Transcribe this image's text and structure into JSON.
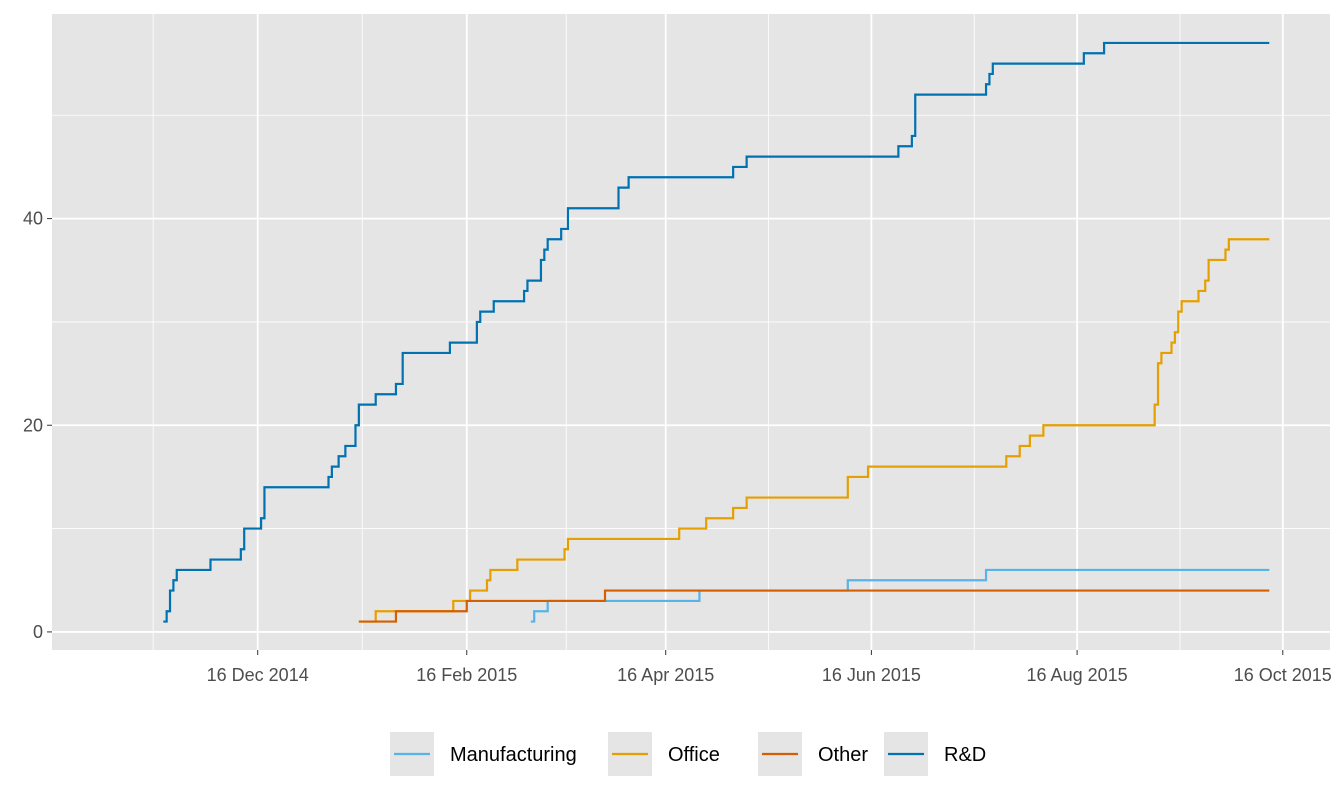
{
  "chart_data": {
    "type": "line",
    "step": true,
    "title": "",
    "xlabel": "",
    "ylabel": "",
    "xlim": [
      "2014-10-16",
      "2015-10-30"
    ],
    "ylim": [
      -1.75,
      59.8
    ],
    "x_ticks": [
      {
        "date": "2014-12-16",
        "label": "16 Dec 2014"
      },
      {
        "date": "2015-02-16",
        "label": "16 Feb 2015"
      },
      {
        "date": "2015-04-16",
        "label": "16 Apr 2015"
      },
      {
        "date": "2015-06-16",
        "label": "16 Jun 2015"
      },
      {
        "date": "2015-08-16",
        "label": "16 Aug 2015"
      },
      {
        "date": "2015-10-16",
        "label": "16 Oct 2015"
      }
    ],
    "y_ticks": [
      {
        "value": 0,
        "label": "0"
      },
      {
        "value": 20,
        "label": "20"
      },
      {
        "value": 40,
        "label": "40"
      }
    ],
    "grid": true,
    "background": "#E5E5E5",
    "legend_position": "bottom",
    "series": [
      {
        "name": "Manufacturing",
        "color": "#56B4E9",
        "points": [
          [
            "2015-03-07",
            1
          ],
          [
            "2015-03-08",
            2
          ],
          [
            "2015-03-12",
            3
          ],
          [
            "2015-04-26",
            4
          ],
          [
            "2015-06-09",
            5
          ],
          [
            "2015-07-20",
            6
          ],
          [
            "2015-10-12",
            6
          ]
        ]
      },
      {
        "name": "Office",
        "color": "#E69F00",
        "points": [
          [
            "2015-01-15",
            1
          ],
          [
            "2015-01-20",
            2
          ],
          [
            "2015-02-12",
            3
          ],
          [
            "2015-02-17",
            4
          ],
          [
            "2015-02-22",
            5
          ],
          [
            "2015-02-23",
            6
          ],
          [
            "2015-03-03",
            7
          ],
          [
            "2015-03-17",
            8
          ],
          [
            "2015-03-18",
            9
          ],
          [
            "2015-04-20",
            10
          ],
          [
            "2015-04-28",
            11
          ],
          [
            "2015-05-06",
            12
          ],
          [
            "2015-05-10",
            13
          ],
          [
            "2015-06-09",
            15
          ],
          [
            "2015-06-15",
            16
          ],
          [
            "2015-07-26",
            17
          ],
          [
            "2015-07-30",
            18
          ],
          [
            "2015-08-02",
            19
          ],
          [
            "2015-08-06",
            20
          ],
          [
            "2015-09-08",
            22
          ],
          [
            "2015-09-09",
            26
          ],
          [
            "2015-09-10",
            27
          ],
          [
            "2015-09-13",
            28
          ],
          [
            "2015-09-14",
            29
          ],
          [
            "2015-09-15",
            31
          ],
          [
            "2015-09-16",
            32
          ],
          [
            "2015-09-21",
            33
          ],
          [
            "2015-09-23",
            34
          ],
          [
            "2015-09-24",
            36
          ],
          [
            "2015-09-29",
            37
          ],
          [
            "2015-09-30",
            38
          ],
          [
            "2015-10-12",
            38
          ]
        ]
      },
      {
        "name": "Other",
        "color": "#D55E00",
        "points": [
          [
            "2015-01-15",
            1
          ],
          [
            "2015-01-26",
            2
          ],
          [
            "2015-02-16",
            3
          ],
          [
            "2015-03-29",
            4
          ],
          [
            "2015-10-12",
            4
          ]
        ]
      },
      {
        "name": "R&D",
        "color": "#0072B2",
        "points": [
          [
            "2014-11-18",
            1
          ],
          [
            "2014-11-19",
            2
          ],
          [
            "2014-11-20",
            4
          ],
          [
            "2014-11-21",
            5
          ],
          [
            "2014-11-22",
            6
          ],
          [
            "2014-12-02",
            7
          ],
          [
            "2014-12-11",
            8
          ],
          [
            "2014-12-12",
            10
          ],
          [
            "2014-12-17",
            11
          ],
          [
            "2014-12-18",
            14
          ],
          [
            "2015-01-06",
            15
          ],
          [
            "2015-01-07",
            16
          ],
          [
            "2015-01-09",
            17
          ],
          [
            "2015-01-11",
            18
          ],
          [
            "2015-01-14",
            20
          ],
          [
            "2015-01-15",
            22
          ],
          [
            "2015-01-20",
            23
          ],
          [
            "2015-01-26",
            24
          ],
          [
            "2015-01-28",
            27
          ],
          [
            "2015-02-11",
            28
          ],
          [
            "2015-02-19",
            30
          ],
          [
            "2015-02-20",
            31
          ],
          [
            "2015-02-24",
            32
          ],
          [
            "2015-03-05",
            33
          ],
          [
            "2015-03-06",
            34
          ],
          [
            "2015-03-10",
            36
          ],
          [
            "2015-03-11",
            37
          ],
          [
            "2015-03-12",
            38
          ],
          [
            "2015-03-16",
            39
          ],
          [
            "2015-03-18",
            41
          ],
          [
            "2015-04-02",
            43
          ],
          [
            "2015-04-05",
            44
          ],
          [
            "2015-05-06",
            45
          ],
          [
            "2015-05-10",
            46
          ],
          [
            "2015-06-24",
            47
          ],
          [
            "2015-06-28",
            48
          ],
          [
            "2015-06-29",
            52
          ],
          [
            "2015-07-20",
            53
          ],
          [
            "2015-07-21",
            54
          ],
          [
            "2015-07-22",
            55
          ],
          [
            "2015-08-18",
            56
          ],
          [
            "2015-08-24",
            57
          ],
          [
            "2015-10-12",
            57
          ]
        ]
      }
    ]
  }
}
